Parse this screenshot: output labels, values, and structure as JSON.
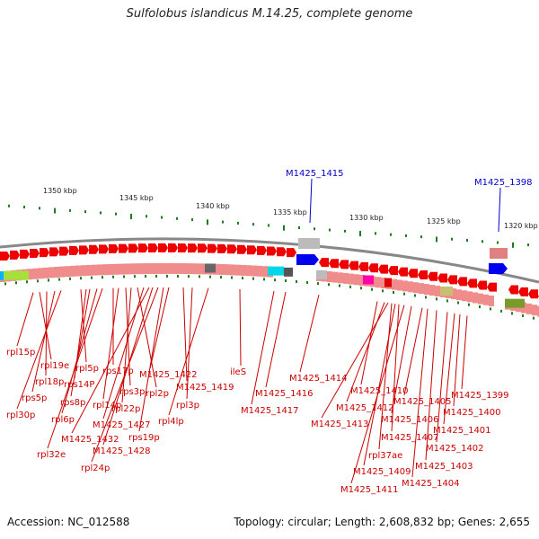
{
  "title": "Sulfolobus islandicus M.14.25, complete genome",
  "accession": "Accession: NC_012588",
  "summary": "Topology: circular; Length: 2,608,832 bp; Genes: 2,655",
  "colors": {
    "gene_red": "#ee0000",
    "gene_pink": "#f08c8c",
    "gene_blue": "#0000ee",
    "tick_green": "#1d7a1d",
    "label_red": "#cc0000",
    "label_blue": "#0000cc",
    "backbone": "#888888"
  },
  "scale_labels": [
    "1350 kbp",
    "1345 kbp",
    "1340 kbp",
    "1335 kbp",
    "1330 kbp",
    "1325 kbp",
    "1320 kbp"
  ],
  "blue_labels": [
    "M1425_1415",
    "M1425_1398"
  ],
  "gene_labels": [
    "rpl15p",
    "rpl19e",
    "rpl18p",
    "rps5p",
    "rpl30p",
    "rpl5p",
    "rps14P",
    "rps8p",
    "rpl6p",
    "rpl32e",
    "rps17p",
    "rpl14p",
    "rps3p",
    "rpl22p",
    "rpl2p",
    "M1425_1427",
    "M1425_1432",
    "M1425_1428",
    "rpl24p",
    "rps19p",
    "M1425_1422",
    "M1425_1419",
    "rpl3p",
    "rpl4lp",
    "ileS",
    "M1425_1414",
    "M1425_1416",
    "M1425_1417",
    "M1425_1410",
    "M1425_1412",
    "M1425_1413",
    "rpl37ae",
    "M1425_1409",
    "M1425_1411",
    "M1425_1407",
    "M1425_1405",
    "M1425_1406",
    "M1425_1399",
    "M1425_1400",
    "M1425_1401",
    "M1425_1402",
    "M1425_1403",
    "M1425_1404"
  ]
}
